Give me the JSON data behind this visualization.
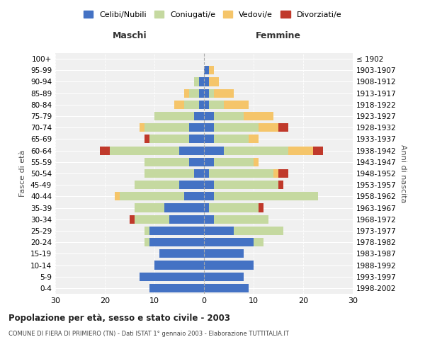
{
  "age_groups": [
    "0-4",
    "5-9",
    "10-14",
    "15-19",
    "20-24",
    "25-29",
    "30-34",
    "35-39",
    "40-44",
    "45-49",
    "50-54",
    "55-59",
    "60-64",
    "65-69",
    "70-74",
    "75-79",
    "80-84",
    "85-89",
    "90-94",
    "95-99",
    "100+"
  ],
  "birth_years": [
    "1998-2002",
    "1993-1997",
    "1988-1992",
    "1983-1987",
    "1978-1982",
    "1973-1977",
    "1968-1972",
    "1963-1967",
    "1958-1962",
    "1953-1957",
    "1948-1952",
    "1943-1947",
    "1938-1942",
    "1933-1937",
    "1928-1932",
    "1923-1927",
    "1918-1922",
    "1913-1917",
    "1908-1912",
    "1903-1907",
    "≤ 1902"
  ],
  "maschi": {
    "celibi": [
      11,
      13,
      10,
      9,
      11,
      11,
      7,
      8,
      4,
      5,
      2,
      3,
      5,
      3,
      3,
      2,
      1,
      1,
      1,
      0,
      0
    ],
    "coniugati": [
      0,
      0,
      0,
      0,
      1,
      1,
      7,
      6,
      13,
      9,
      10,
      9,
      14,
      8,
      9,
      8,
      3,
      2,
      1,
      0,
      0
    ],
    "vedovi": [
      0,
      0,
      0,
      0,
      0,
      0,
      0,
      0,
      1,
      0,
      0,
      0,
      0,
      0,
      1,
      0,
      2,
      1,
      0,
      0,
      0
    ],
    "divorziati": [
      0,
      0,
      0,
      0,
      0,
      0,
      1,
      0,
      0,
      0,
      0,
      0,
      2,
      1,
      0,
      0,
      0,
      0,
      0,
      0,
      0
    ]
  },
  "femmine": {
    "nubili": [
      9,
      8,
      10,
      8,
      10,
      6,
      2,
      1,
      2,
      2,
      1,
      2,
      4,
      2,
      2,
      2,
      1,
      1,
      1,
      1,
      0
    ],
    "coniugate": [
      0,
      0,
      0,
      0,
      2,
      10,
      11,
      10,
      21,
      13,
      13,
      8,
      13,
      7,
      9,
      6,
      3,
      1,
      0,
      0,
      0
    ],
    "vedove": [
      0,
      0,
      0,
      0,
      0,
      0,
      0,
      0,
      0,
      0,
      1,
      1,
      5,
      2,
      4,
      6,
      5,
      4,
      2,
      1,
      0
    ],
    "divorziate": [
      0,
      0,
      0,
      0,
      0,
      0,
      0,
      1,
      0,
      1,
      2,
      0,
      2,
      0,
      2,
      0,
      0,
      0,
      0,
      0,
      0
    ]
  },
  "colors": {
    "celibi_nubili": "#4472c4",
    "coniugati": "#c5d9a0",
    "vedovi": "#f5c56a",
    "divorziati": "#c0392b"
  },
  "xlim": 30,
  "title": "Popolazione per età, sesso e stato civile - 2003",
  "subtitle": "COMUNE DI FIERA DI PRIMIERO (TN) - Dati ISTAT 1° gennaio 2003 - Elaborazione TUTTITALIA.IT",
  "ylabel_left": "Fasce di età",
  "ylabel_right": "Anni di nascita",
  "legend_labels": [
    "Celibi/Nubili",
    "Coniugati/e",
    "Vedovi/e",
    "Divorziati/e"
  ],
  "maschi_label": "Maschi",
  "femmine_label": "Femmine",
  "background_color": "#f0f0f0"
}
